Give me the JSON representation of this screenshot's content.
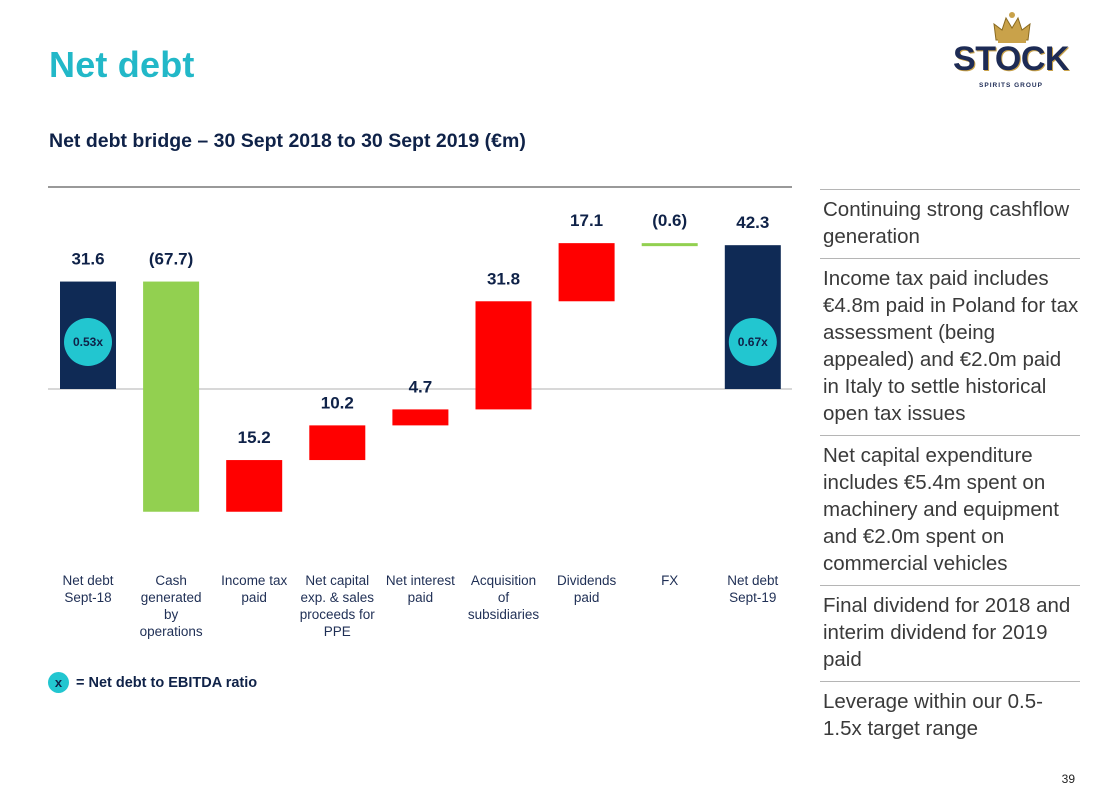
{
  "slide": {
    "title": "Net debt",
    "page_number": "39"
  },
  "logo": {
    "brand": "STOCK",
    "tagline": "SPIRITS GROUP"
  },
  "legend": {
    "symbol": "x",
    "text": "= Net debt to EBITDA ratio"
  },
  "notes": [
    "Continuing strong cashflow generation",
    "Income tax paid includes €4.8m paid in Poland for tax assessment (being appealed) and €2.0m paid in Italy to settle historical open tax issues",
    "Net capital expenditure includes €5.4m spent on machinery and equipment and €2.0m spent on commercial vehicles",
    "Final dividend for 2018 and interim dividend for 2019 paid",
    "Leverage within our 0.5-1.5x target range"
  ],
  "colors": {
    "total": "#0f2a55",
    "decrease": "#92d050",
    "increase": "#ff0000",
    "ratio_badge": "#22c6d0",
    "title": "#22b8c8"
  },
  "chart_data": {
    "type": "bar",
    "subtype": "waterfall",
    "title": "Net debt bridge – 30 Sept 2018 to 30 Sept 2019 (€m)",
    "unit": "€m",
    "grid": false,
    "steps": [
      {
        "category": [
          "Net debt",
          "Sept-18"
        ],
        "value": 31.6,
        "label": "31.6",
        "kind": "total",
        "ratio": "0.53x"
      },
      {
        "category": [
          "Cash",
          "generated",
          "by",
          "operations"
        ],
        "value": -67.7,
        "label": "(67.7)",
        "kind": "decrease"
      },
      {
        "category": [
          "Income tax",
          "paid"
        ],
        "value": 15.2,
        "label": "15.2",
        "kind": "increase"
      },
      {
        "category": [
          "Net capital",
          "exp. & sales",
          "proceeds for",
          "PPE"
        ],
        "value": 10.2,
        "label": "10.2",
        "kind": "increase"
      },
      {
        "category": [
          "Net interest",
          "paid"
        ],
        "value": 4.7,
        "label": "4.7",
        "kind": "increase"
      },
      {
        "category": [
          "Acquisition",
          "of",
          "subsidiaries"
        ],
        "value": 31.8,
        "label": "31.8",
        "kind": "increase"
      },
      {
        "category": [
          "Dividends",
          "paid"
        ],
        "value": 17.1,
        "label": "17.1",
        "kind": "increase"
      },
      {
        "category": [
          "FX"
        ],
        "value": -0.6,
        "label": "(0.6)",
        "kind": "decrease"
      },
      {
        "category": [
          "Net debt",
          "Sept-19"
        ],
        "value": 42.3,
        "label": "42.3",
        "kind": "total",
        "ratio": "0.67x"
      }
    ]
  }
}
